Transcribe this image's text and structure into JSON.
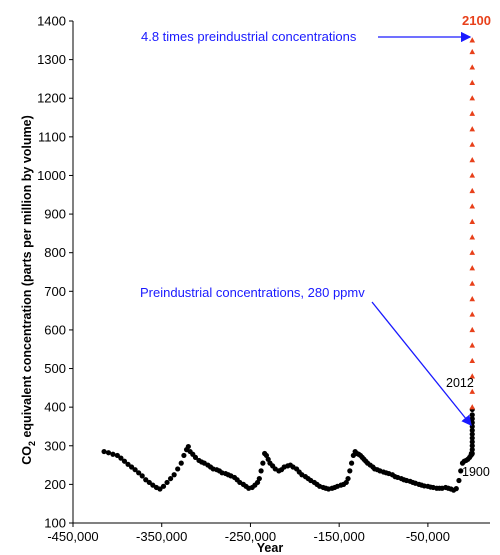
{
  "chart_data": {
    "type": "scatter",
    "title": "",
    "xlabel": "Year",
    "ylabel": "CO2 equivalent concentration (parts per million by volume)",
    "ylabel_main": "CO",
    "ylabel_sub": "2",
    "ylabel_rest": " equivalent concentration (parts per million by volume)",
    "xlim": [
      -450000,
      20000
    ],
    "ylim": [
      100,
      1400
    ],
    "xticks": [
      -450000,
      -350000,
      -250000,
      -150000,
      -50000
    ],
    "xtick_labels": [
      "-450,000",
      "-350,000",
      "-250,000",
      "-150,000",
      "-50,000"
    ],
    "yticks": [
      100,
      200,
      300,
      400,
      500,
      600,
      700,
      800,
      900,
      1000,
      1100,
      1200,
      1300,
      1400
    ],
    "ytick_labels": [
      "100",
      "200",
      "300",
      "400",
      "500",
      "600",
      "700",
      "800",
      "900",
      "1000",
      "1100",
      "1200",
      "1300",
      "1400"
    ],
    "grid": false,
    "colors": {
      "historical": "#000000",
      "projection": "#e8401a",
      "annotation": "#1a1aff"
    },
    "series": [
      {
        "values_xy": [
          [
            -415000,
            285
          ],
          [
            -410000,
            282
          ],
          [
            -405000,
            278
          ],
          [
            -400000,
            275
          ],
          [
            -396000,
            268
          ],
          [
            -392000,
            260
          ],
          [
            -388000,
            252
          ],
          [
            -384000,
            245
          ],
          [
            -380000,
            238
          ],
          [
            -376000,
            230
          ],
          [
            -372000,
            222
          ],
          [
            -368000,
            212
          ],
          [
            -364000,
            205
          ],
          [
            -360000,
            198
          ],
          [
            -356000,
            192
          ],
          [
            -352000,
            188
          ],
          [
            -348000,
            195
          ],
          [
            -344000,
            205
          ],
          [
            -340000,
            215
          ],
          [
            -336000,
            225
          ],
          [
            -332000,
            240
          ],
          [
            -328000,
            255
          ],
          [
            -325000,
            275
          ],
          [
            -322000,
            290
          ],
          [
            -320000,
            298
          ],
          [
            -318000,
            285
          ],
          [
            -315000,
            278
          ],
          [
            -312000,
            270
          ],
          [
            -308000,
            262
          ],
          [
            -305000,
            258
          ],
          [
            -302000,
            255
          ],
          [
            -298000,
            250
          ],
          [
            -295000,
            245
          ],
          [
            -292000,
            240
          ],
          [
            -288000,
            238
          ],
          [
            -285000,
            235
          ],
          [
            -282000,
            230
          ],
          [
            -278000,
            228
          ],
          [
            -275000,
            225
          ],
          [
            -272000,
            222
          ],
          [
            -268000,
            218
          ],
          [
            -265000,
            212
          ],
          [
            -262000,
            205
          ],
          [
            -258000,
            200
          ],
          [
            -255000,
            195
          ],
          [
            -252000,
            190
          ],
          [
            -248000,
            192
          ],
          [
            -245000,
            198
          ],
          [
            -242000,
            205
          ],
          [
            -240000,
            215
          ],
          [
            -238000,
            235
          ],
          [
            -236000,
            255
          ],
          [
            -234000,
            280
          ],
          [
            -232000,
            275
          ],
          [
            -230000,
            265
          ],
          [
            -228000,
            255
          ],
          [
            -225000,
            248
          ],
          [
            -222000,
            240
          ],
          [
            -218000,
            235
          ],
          [
            -215000,
            238
          ],
          [
            -212000,
            245
          ],
          [
            -208000,
            248
          ],
          [
            -205000,
            250
          ],
          [
            -202000,
            245
          ],
          [
            -198000,
            240
          ],
          [
            -195000,
            232
          ],
          [
            -192000,
            225
          ],
          [
            -188000,
            220
          ],
          [
            -185000,
            215
          ],
          [
            -182000,
            210
          ],
          [
            -178000,
            205
          ],
          [
            -175000,
            200
          ],
          [
            -172000,
            195
          ],
          [
            -168000,
            192
          ],
          [
            -165000,
            190
          ],
          [
            -162000,
            188
          ],
          [
            -158000,
            190
          ],
          [
            -155000,
            192
          ],
          [
            -152000,
            195
          ],
          [
            -148000,
            198
          ],
          [
            -145000,
            200
          ],
          [
            -142000,
            205
          ],
          [
            -140000,
            215
          ],
          [
            -138000,
            235
          ],
          [
            -136000,
            255
          ],
          [
            -134000,
            275
          ],
          [
            -132000,
            285
          ],
          [
            -130000,
            280
          ],
          [
            -128000,
            278
          ],
          [
            -126000,
            275
          ],
          [
            -124000,
            270
          ],
          [
            -122000,
            265
          ],
          [
            -120000,
            260
          ],
          [
            -118000,
            255
          ],
          [
            -115000,
            250
          ],
          [
            -112000,
            245
          ],
          [
            -110000,
            240
          ],
          [
            -107000,
            238
          ],
          [
            -104000,
            235
          ],
          [
            -100000,
            232
          ],
          [
            -97000,
            230
          ],
          [
            -94000,
            228
          ],
          [
            -90000,
            225
          ],
          [
            -87000,
            220
          ],
          [
            -84000,
            218
          ],
          [
            -80000,
            215
          ],
          [
            -77000,
            212
          ],
          [
            -74000,
            210
          ],
          [
            -70000,
            208
          ],
          [
            -67000,
            205
          ],
          [
            -64000,
            203
          ],
          [
            -60000,
            200
          ],
          [
            -57000,
            198
          ],
          [
            -54000,
            196
          ],
          [
            -50000,
            195
          ],
          [
            -47000,
            193
          ],
          [
            -44000,
            192
          ],
          [
            -40000,
            190
          ],
          [
            -37000,
            190
          ],
          [
            -34000,
            190
          ],
          [
            -30000,
            192
          ],
          [
            -27000,
            190
          ],
          [
            -24000,
            188
          ],
          [
            -21000,
            185
          ],
          [
            -18000,
            189
          ],
          [
            -15000,
            210
          ],
          [
            -13000,
            235
          ],
          [
            -11000,
            255
          ],
          [
            -9000,
            260
          ],
          [
            -7000,
            262
          ],
          [
            -5000,
            265
          ],
          [
            -3000,
            270
          ],
          [
            -1500,
            275
          ],
          [
            -1000,
            280
          ],
          [
            -500,
            278
          ],
          [
            0,
            280
          ],
          [
            0,
            290
          ],
          [
            0,
            300
          ],
          [
            0,
            310
          ],
          [
            0,
            320
          ],
          [
            0,
            330
          ],
          [
            0,
            340
          ],
          [
            0,
            350
          ],
          [
            0,
            360
          ],
          [
            0,
            370
          ],
          [
            0,
            380
          ],
          [
            0,
            394
          ]
        ]
      },
      {
        "values_xy": [
          [
            0,
            400
          ],
          [
            0,
            440
          ],
          [
            0,
            480
          ],
          [
            0,
            520
          ],
          [
            0,
            560
          ],
          [
            0,
            600
          ],
          [
            0,
            640
          ],
          [
            0,
            680
          ],
          [
            0,
            720
          ],
          [
            0,
            760
          ],
          [
            0,
            800
          ],
          [
            0,
            840
          ],
          [
            0,
            880
          ],
          [
            0,
            920
          ],
          [
            0,
            960
          ],
          [
            0,
            1000
          ],
          [
            0,
            1040
          ],
          [
            0,
            1080
          ],
          [
            0,
            1120
          ],
          [
            0,
            1160
          ],
          [
            0,
            1200
          ],
          [
            0,
            1240
          ],
          [
            0,
            1280
          ],
          [
            0,
            1320
          ],
          [
            0,
            1350
          ]
        ]
      }
    ],
    "annotations": {
      "top_text": "4.8 times preindustrial concentrations",
      "mid_text": "Preindustrial concentrations, 280 ppmv",
      "label_2100": "2100",
      "label_2012": "2012",
      "label_1900": "1900"
    }
  }
}
